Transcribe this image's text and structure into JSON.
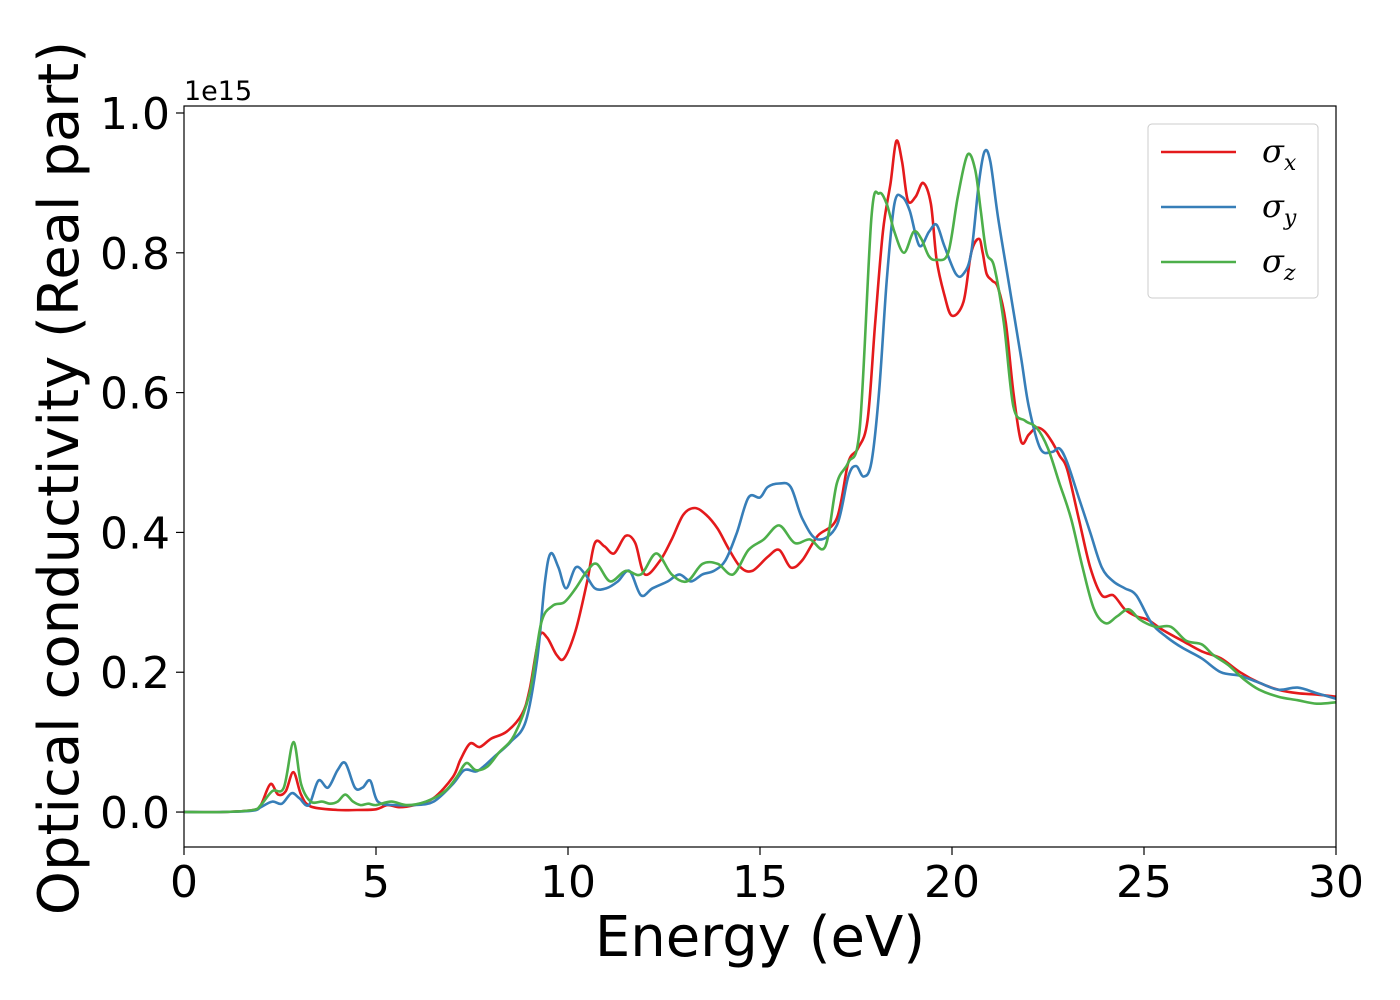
{
  "chart_data": {
    "type": "line",
    "title": "",
    "xlabel": "Energy (eV)",
    "ylabel": "Optical conductivity (Real part)",
    "y_offset_label": "1e15",
    "xlim": [
      0,
      30
    ],
    "ylim": [
      -0.05,
      1.01
    ],
    "xticks": [
      0,
      5,
      10,
      15,
      20,
      25,
      30
    ],
    "yticks": [
      0.0,
      0.2,
      0.4,
      0.6,
      0.8,
      1.0
    ],
    "xtick_labels": [
      "0",
      "5",
      "10",
      "15",
      "20",
      "25",
      "30"
    ],
    "ytick_labels": [
      "0.0",
      "0.2",
      "0.4",
      "0.6",
      "0.8",
      "1.0"
    ],
    "grid": false,
    "legend_position": "top-right",
    "series": [
      {
        "name": "σx",
        "symbol": "σ",
        "subscript": "x",
        "color": "#e41a1c",
        "x": [
          0,
          1,
          1.8,
          2.0,
          2.25,
          2.45,
          2.65,
          2.85,
          3.05,
          3.3,
          4,
          4.5,
          5,
          5.3,
          5.6,
          6,
          6.5,
          7,
          7.2,
          7.45,
          7.7,
          8,
          8.4,
          8.8,
          9.0,
          9.25,
          9.45,
          9.7,
          9.9,
          10.2,
          10.5,
          10.7,
          10.95,
          11.2,
          11.5,
          11.75,
          12,
          12.4,
          12.7,
          13.0,
          13.3,
          13.6,
          13.9,
          14.2,
          14.5,
          14.8,
          15.2,
          15.5,
          15.8,
          16.1,
          16.5,
          17.0,
          17.3,
          17.55,
          17.8,
          18.0,
          18.2,
          18.4,
          18.55,
          18.7,
          18.85,
          19.05,
          19.25,
          19.45,
          19.6,
          19.8,
          20.0,
          20.3,
          20.5,
          20.7,
          20.8,
          20.9,
          21.05,
          21.2,
          21.4,
          21.6,
          21.8,
          22.0,
          22.2,
          22.4,
          22.6,
          22.8,
          23.0,
          23.3,
          23.6,
          23.9,
          24.2,
          24.5,
          24.8,
          25.1,
          25.5,
          26.0,
          26.5,
          27,
          27.5,
          28,
          28.5,
          29,
          29.5,
          30
        ],
        "y": [
          0.0,
          0.0,
          0.003,
          0.01,
          0.04,
          0.025,
          0.03,
          0.057,
          0.025,
          0.008,
          0.003,
          0.003,
          0.004,
          0.01,
          0.007,
          0.01,
          0.02,
          0.05,
          0.075,
          0.098,
          0.093,
          0.105,
          0.115,
          0.14,
          0.175,
          0.25,
          0.25,
          0.225,
          0.22,
          0.26,
          0.33,
          0.385,
          0.38,
          0.37,
          0.395,
          0.385,
          0.34,
          0.36,
          0.39,
          0.425,
          0.435,
          0.425,
          0.405,
          0.375,
          0.35,
          0.345,
          0.365,
          0.375,
          0.35,
          0.36,
          0.395,
          0.42,
          0.5,
          0.52,
          0.56,
          0.7,
          0.83,
          0.9,
          0.96,
          0.93,
          0.875,
          0.88,
          0.9,
          0.87,
          0.79,
          0.74,
          0.71,
          0.73,
          0.8,
          0.82,
          0.8,
          0.77,
          0.76,
          0.75,
          0.7,
          0.6,
          0.53,
          0.54,
          0.55,
          0.545,
          0.53,
          0.51,
          0.49,
          0.42,
          0.35,
          0.31,
          0.31,
          0.29,
          0.28,
          0.275,
          0.26,
          0.245,
          0.23,
          0.22,
          0.2,
          0.185,
          0.175,
          0.17,
          0.168,
          0.165
        ]
      },
      {
        "name": "σy",
        "symbol": "σ",
        "subscript": "y",
        "color": "#377eb8",
        "x": [
          0,
          1,
          1.8,
          2.0,
          2.3,
          2.55,
          2.8,
          3.0,
          3.25,
          3.5,
          3.75,
          4.0,
          4.2,
          4.45,
          4.65,
          4.85,
          5.05,
          5.5,
          6,
          6.5,
          7.0,
          7.3,
          7.6,
          7.8,
          8.1,
          8.5,
          8.9,
          9.2,
          9.4,
          9.55,
          9.75,
          9.95,
          10.2,
          10.45,
          10.7,
          11.0,
          11.3,
          11.6,
          11.9,
          12.2,
          12.6,
          12.9,
          13.2,
          13.5,
          13.8,
          14.1,
          14.4,
          14.7,
          15.0,
          15.2,
          15.5,
          15.8,
          16.1,
          16.5,
          17.0,
          17.3,
          17.5,
          17.7,
          17.9,
          18.1,
          18.3,
          18.5,
          18.7,
          18.9,
          19.15,
          19.4,
          19.6,
          19.8,
          20.1,
          20.3,
          20.5,
          20.7,
          20.85,
          21.0,
          21.2,
          21.5,
          21.8,
          22.0,
          22.3,
          22.6,
          22.8,
          23.0,
          23.3,
          23.6,
          23.9,
          24.2,
          24.5,
          24.8,
          25.2,
          25.6,
          26.0,
          26.5,
          27,
          27.5,
          28,
          28.5,
          29,
          29.5,
          30
        ],
        "y": [
          0.0,
          0.0,
          0.002,
          0.007,
          0.015,
          0.012,
          0.027,
          0.02,
          0.01,
          0.045,
          0.035,
          0.06,
          0.07,
          0.035,
          0.035,
          0.045,
          0.015,
          0.01,
          0.01,
          0.015,
          0.04,
          0.06,
          0.058,
          0.065,
          0.08,
          0.1,
          0.13,
          0.22,
          0.33,
          0.37,
          0.35,
          0.32,
          0.35,
          0.34,
          0.32,
          0.32,
          0.33,
          0.345,
          0.31,
          0.32,
          0.33,
          0.34,
          0.33,
          0.34,
          0.345,
          0.36,
          0.4,
          0.45,
          0.45,
          0.465,
          0.47,
          0.465,
          0.42,
          0.39,
          0.41,
          0.48,
          0.495,
          0.48,
          0.5,
          0.6,
          0.76,
          0.87,
          0.88,
          0.86,
          0.81,
          0.83,
          0.84,
          0.81,
          0.77,
          0.77,
          0.8,
          0.9,
          0.945,
          0.93,
          0.85,
          0.75,
          0.65,
          0.58,
          0.52,
          0.515,
          0.52,
          0.5,
          0.45,
          0.4,
          0.35,
          0.33,
          0.32,
          0.31,
          0.27,
          0.25,
          0.235,
          0.22,
          0.2,
          0.195,
          0.185,
          0.175,
          0.178,
          0.17,
          0.162
        ]
      },
      {
        "name": "σz",
        "symbol": "σ",
        "subscript": "z",
        "color": "#4daf4a",
        "x": [
          0,
          1,
          1.8,
          2.0,
          2.3,
          2.6,
          2.85,
          3.05,
          3.3,
          3.6,
          3.8,
          4.0,
          4.2,
          4.4,
          4.6,
          4.8,
          5.0,
          5.4,
          5.8,
          6.3,
          6.8,
          7.1,
          7.35,
          7.6,
          7.9,
          8.2,
          8.6,
          9.0,
          9.3,
          9.6,
          9.9,
          10.2,
          10.5,
          10.75,
          11.1,
          11.5,
          11.9,
          12.3,
          12.7,
          13.1,
          13.5,
          13.9,
          14.3,
          14.7,
          15.1,
          15.5,
          15.9,
          16.3,
          16.7,
          17.0,
          17.3,
          17.6,
          17.9,
          18.1,
          18.3,
          18.5,
          18.75,
          19.0,
          19.2,
          19.4,
          19.6,
          19.9,
          20.15,
          20.4,
          20.6,
          20.75,
          20.9,
          21.1,
          21.35,
          21.6,
          21.9,
          22.2,
          22.5,
          22.8,
          23.1,
          23.4,
          23.7,
          24.0,
          24.3,
          24.6,
          24.9,
          25.3,
          25.7,
          26.1,
          26.5,
          26.8,
          27.2,
          27.6,
          28,
          28.5,
          29,
          29.5,
          30
        ],
        "y": [
          0.0,
          0.0,
          0.003,
          0.01,
          0.03,
          0.035,
          0.1,
          0.04,
          0.015,
          0.015,
          0.012,
          0.015,
          0.025,
          0.015,
          0.01,
          0.012,
          0.01,
          0.015,
          0.01,
          0.015,
          0.03,
          0.05,
          0.07,
          0.06,
          0.065,
          0.085,
          0.11,
          0.17,
          0.27,
          0.295,
          0.3,
          0.32,
          0.345,
          0.355,
          0.33,
          0.345,
          0.34,
          0.37,
          0.34,
          0.33,
          0.355,
          0.355,
          0.34,
          0.375,
          0.39,
          0.41,
          0.385,
          0.39,
          0.38,
          0.47,
          0.5,
          0.55,
          0.85,
          0.885,
          0.87,
          0.83,
          0.8,
          0.83,
          0.82,
          0.795,
          0.79,
          0.8,
          0.88,
          0.94,
          0.92,
          0.86,
          0.8,
          0.78,
          0.7,
          0.58,
          0.56,
          0.55,
          0.52,
          0.47,
          0.42,
          0.35,
          0.29,
          0.27,
          0.28,
          0.29,
          0.275,
          0.265,
          0.265,
          0.245,
          0.24,
          0.225,
          0.21,
          0.19,
          0.175,
          0.165,
          0.16,
          0.155,
          0.157
        ]
      }
    ]
  }
}
